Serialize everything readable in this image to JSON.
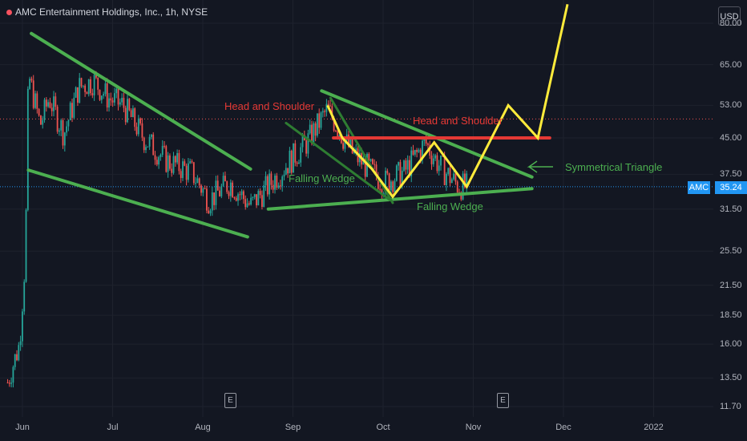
{
  "header": {
    "title": "AMC Entertainment Holdings, Inc., 1h, NYSE",
    "currency": "USD"
  },
  "price_tag": {
    "symbol": "AMC",
    "price": "35.24"
  },
  "colors": {
    "background": "#131722",
    "up": "#26a69a",
    "down": "#ef5350",
    "trend_green": "#4caf50",
    "wedge_dark_green": "#2e7d32",
    "forecast_yellow": "#ffeb3b",
    "resistance_red": "#e53935",
    "current_price_line": "#2196f3"
  },
  "annotations": {
    "hs_left": "Head and Shoulder",
    "hs_right": "Head and Shoulder",
    "fw_top": "Falling Wedge",
    "fw_bottom": "Falling Wedge",
    "sym_triangle": "Symmetrical Triangle"
  },
  "earnings_marker": "E",
  "chart_data": {
    "type": "line",
    "title": "AMC Entertainment Holdings, Inc., 1h, NYSE",
    "y_scale": "log",
    "ylim": [
      11.3,
      88
    ],
    "y_ticks": [
      "80.00",
      "65.00",
      "53.00",
      "45.00",
      "37.50",
      "31.50",
      "25.50",
      "21.50",
      "18.50",
      "16.00",
      "13.50",
      "11.70"
    ],
    "x_ticks": [
      "Jun",
      "Jul",
      "Aug",
      "Sep",
      "Oct",
      "Nov",
      "Dec",
      "2022"
    ],
    "current_price": 35.24,
    "series": [
      {
        "name": "",
        "x": [
          "2021-05-27",
          "2021-05-31",
          "2021-06-02",
          "2021-06-03",
          "2021-06-07",
          "2021-06-10",
          "2021-06-15",
          "2021-06-20",
          "2021-06-25",
          "2021-06-30",
          "2021-07-05",
          "2021-07-12",
          "2021-07-20",
          "2021-07-28",
          "2021-08-03",
          "2021-08-10",
          "2021-08-17",
          "2021-08-24",
          "2021-08-30",
          "2021-09-05",
          "2021-09-12",
          "2021-09-20",
          "2021-09-27",
          "2021-10-01",
          "2021-10-08",
          "2021-10-15",
          "2021-10-20",
          "2021-10-26",
          "2021-10-29"
        ],
        "values": [
          13.2,
          16,
          25,
          62,
          48,
          55,
          46,
          58,
          60,
          55,
          53,
          45,
          40,
          38,
          33,
          36,
          32,
          36,
          40,
          44,
          52,
          42,
          38,
          36,
          38,
          44,
          39,
          35.5,
          35.24
        ]
      },
      {
        "name": "",
        "x": [
          "2021-09-12",
          "2021-09-17",
          "2021-09-27",
          "2021-10-04",
          "2021-10-18",
          "2021-10-29",
          "2021-11-12",
          "2021-11-22",
          "2021-12-02"
        ],
        "values": [
          53,
          45,
          38.5,
          33.5,
          44,
          35.24,
          53,
          45,
          88
        ]
      }
    ],
    "trendlines": [
      {
        "label": "",
        "from": [
          "2021-06-04",
          76
        ],
        "to": [
          "2021-08-17",
          38.5
        ]
      },
      {
        "label": "",
        "from": [
          "2021-06-03",
          38.3
        ],
        "to": [
          "2021-08-16",
          27.4
        ]
      },
      {
        "label": "",
        "from": [
          "2021-08-23",
          31.5
        ],
        "to": [
          "2021-11-20",
          34.9
        ]
      },
      {
        "label": "",
        "from": [
          "2021-09-10",
          57
        ],
        "to": [
          "2021-11-20",
          37
        ]
      },
      {
        "label": "Falling Wedge",
        "from": [
          "2021-08-29",
          48.5
        ],
        "to": [
          "2021-10-03",
          33
        ]
      },
      {
        "label": "Falling Wedge",
        "from": [
          "2021-09-13",
          55
        ],
        "to": [
          "2021-10-04",
          32.5
        ]
      },
      {
        "label": "Head and Shoulder",
        "from": [
          "2021-09-14",
          45
        ],
        "to": [
          "2021-11-26",
          45
        ]
      }
    ]
  }
}
